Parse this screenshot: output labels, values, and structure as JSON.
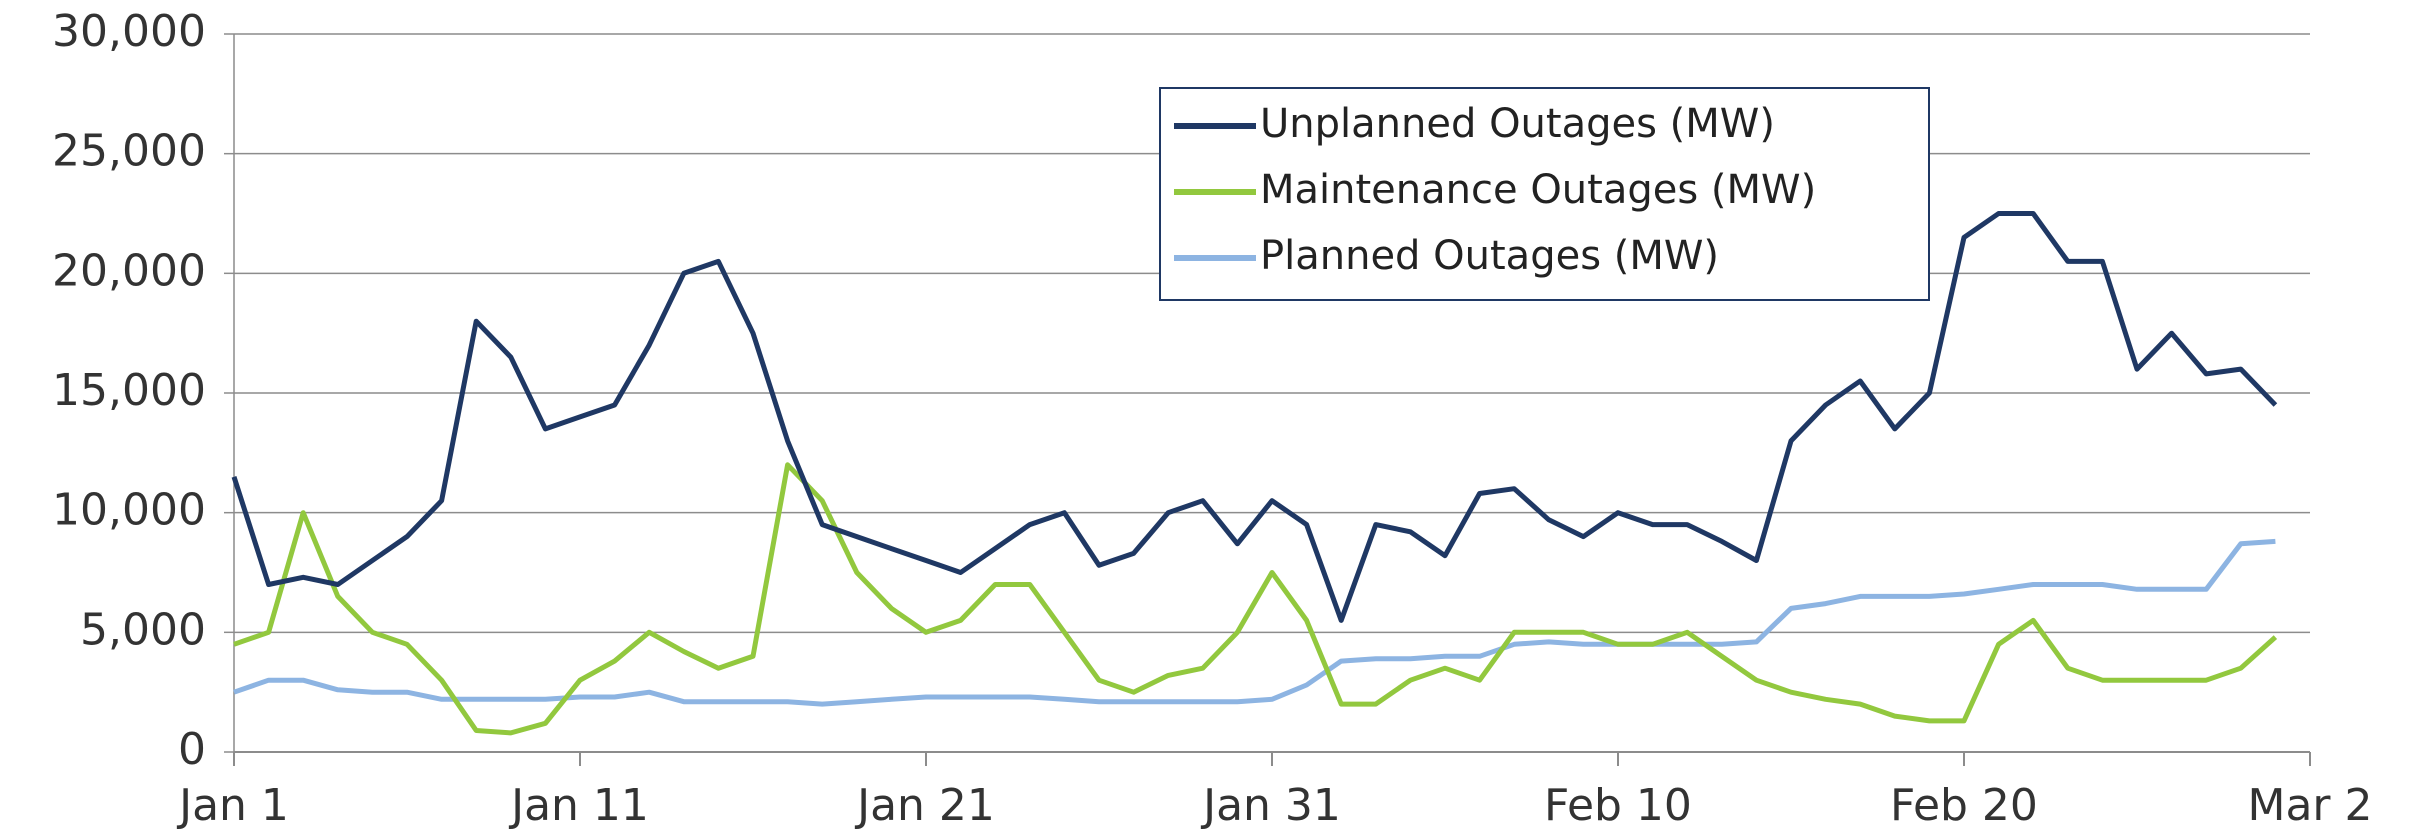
{
  "chart_data": {
    "type": "line",
    "x": [
      0,
      1,
      2,
      3,
      4,
      5,
      6,
      7,
      8,
      9,
      10,
      11,
      12,
      13,
      14,
      15,
      16,
      17,
      18,
      19,
      20,
      21,
      22,
      23,
      24,
      25,
      26,
      27,
      28,
      29,
      30,
      31,
      32,
      33,
      34,
      35,
      36,
      37,
      38,
      39,
      40,
      41,
      42,
      43,
      44,
      45,
      46,
      47,
      48,
      49,
      50,
      51,
      52,
      53,
      54,
      55,
      56,
      57,
      58,
      59
    ],
    "series": [
      {
        "name": "Unplanned Outages (MW)",
        "color": "#1f3864",
        "values": [
          11500,
          7000,
          7300,
          7000,
          8000,
          9000,
          10500,
          18000,
          16500,
          13500,
          14000,
          14500,
          17000,
          20000,
          20500,
          17500,
          13000,
          9500,
          9000,
          8500,
          8000,
          7500,
          8500,
          9500,
          10000,
          7800,
          8300,
          10000,
          10500,
          8700,
          10500,
          9500,
          5500,
          9500,
          9200,
          8200,
          10800,
          11000,
          9700,
          9000,
          10000,
          9500,
          9500,
          8800,
          8000,
          13000,
          14500,
          15500,
          13500,
          15000,
          21500,
          22500,
          22500,
          20500,
          20500,
          16000,
          17500,
          15800,
          16000,
          14500
        ]
      },
      {
        "name": "Maintenance Outages (MW)",
        "color": "#92c83e",
        "values": [
          4500,
          5000,
          10000,
          6500,
          5000,
          4500,
          3000,
          900,
          800,
          1200,
          3000,
          3800,
          5000,
          4200,
          3500,
          4000,
          12000,
          10500,
          7500,
          6000,
          5000,
          5500,
          7000,
          7000,
          5000,
          3000,
          2500,
          3200,
          3500,
          5000,
          7500,
          5500,
          2000,
          2000,
          3000,
          3500,
          3000,
          5000,
          5000,
          5000,
          4500,
          4500,
          5000,
          4000,
          3000,
          2500,
          2200,
          2000,
          1500,
          1300,
          1300,
          4500,
          5500,
          3500,
          3000,
          3000,
          3000,
          3000,
          3500,
          4800
        ]
      },
      {
        "name": "Planned Outages (MW)",
        "color": "#8db4e2",
        "values": [
          2500,
          3000,
          3000,
          2600,
          2500,
          2500,
          2200,
          2200,
          2200,
          2200,
          2300,
          2300,
          2500,
          2100,
          2100,
          2100,
          2100,
          2000,
          2100,
          2200,
          2300,
          2300,
          2300,
          2300,
          2200,
          2100,
          2100,
          2100,
          2100,
          2100,
          2200,
          2800,
          3800,
          3900,
          3900,
          4000,
          4000,
          4500,
          4600,
          4500,
          4500,
          4500,
          4500,
          4500,
          4600,
          6000,
          6200,
          6500,
          6500,
          6500,
          6600,
          6800,
          7000,
          7000,
          7000,
          6800,
          6800,
          6800,
          8700,
          8800
        ]
      }
    ],
    "xlim": [
      0,
      60
    ],
    "xticks": [
      {
        "value": 0,
        "label": "Jan 1"
      },
      {
        "value": 10,
        "label": "Jan 11"
      },
      {
        "value": 20,
        "label": "Jan 21"
      },
      {
        "value": 30,
        "label": "Jan 31"
      },
      {
        "value": 40,
        "label": "Feb 10"
      },
      {
        "value": 50,
        "label": "Feb 20"
      },
      {
        "value": 60,
        "label": "Mar 2"
      }
    ],
    "ylim": [
      0,
      30000
    ],
    "yticks": [
      0,
      {
        "value": 5000,
        "label": "5,000"
      },
      {
        "value": 10000,
        "label": "10,000"
      },
      {
        "value": 15000,
        "label": "15,000"
      },
      {
        "value": 20000,
        "label": "20,000"
      },
      {
        "value": 25000,
        "label": "25,000"
      },
      {
        "value": 30000,
        "label": "30,000"
      }
    ],
    "grid": true,
    "legend": "upper right"
  }
}
